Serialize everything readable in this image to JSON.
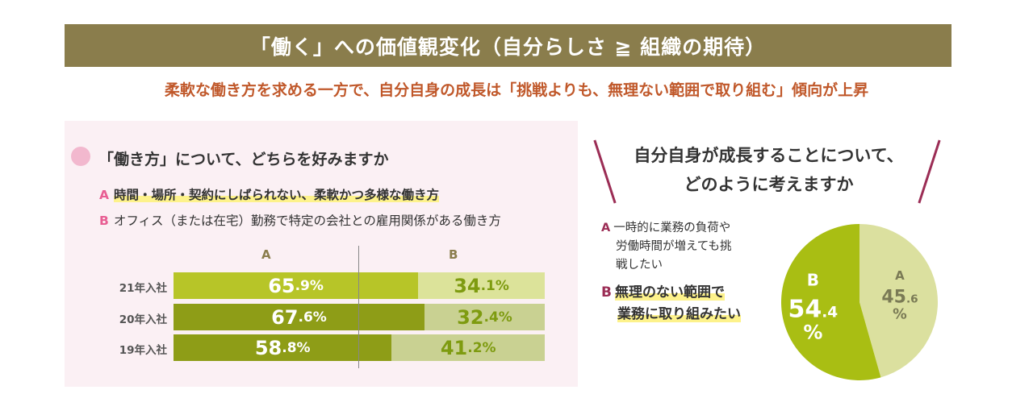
{
  "header": {
    "title": "「働く」への価値観変化（自分らしさ ≧ 組織の期待）",
    "subtitle": "柔軟な働き方を求める一方で、自分自身の成長は「挑戦よりも、無理ない範囲で取り組む」傾向が上昇"
  },
  "left": {
    "question": "「働き方」について、どちらを好みますか",
    "option_a_key": "A",
    "option_a": "時間・場所・契約にしばられない、柔軟かつ多様な働き方",
    "option_b_key": "B",
    "option_b": "オフィス（または在宅）勤務で特定の会社との雇用関係がある働き方",
    "col_a": "A",
    "col_b": "B"
  },
  "right": {
    "question_line1": "自分自身が成長することについて、",
    "question_line2": "どのように考えますか",
    "option_a_key": "A",
    "option_a_line1": "一時的に業務の負荷や",
    "option_a_line2": "労働時間が増えても挑",
    "option_a_line3": "戦したい",
    "option_b_key": "B",
    "option_b_line1": "無理のない範囲で",
    "option_b_line2": "業務に取り組みたい"
  },
  "chart_data": [
    {
      "type": "bar",
      "stacked": true,
      "orientation": "horizontal",
      "categories": [
        "21年入社",
        "20年入社",
        "19年入社"
      ],
      "series": [
        {
          "name": "A",
          "values": [
            65.9,
            67.6,
            58.8
          ]
        },
        {
          "name": "B",
          "values": [
            34.1,
            32.4,
            41.2
          ]
        }
      ],
      "unit": "%",
      "xlim": [
        0,
        100
      ],
      "colors": {
        "a": [
          "#b7c528",
          "#8e9d17",
          "#8e9d17"
        ],
        "b": [
          "#dce39a",
          "#c9d192",
          "#c9d192"
        ]
      }
    },
    {
      "type": "pie",
      "labels": [
        "A",
        "B"
      ],
      "values": [
        45.6,
        54.4
      ],
      "unit": "%",
      "colors": [
        "#dbe09f",
        "#a9be13"
      ]
    }
  ],
  "colors": {
    "banner": "#8a7d4c",
    "subtitle": "#c0582a",
    "accent_pink": "#e85e93",
    "accent_wine": "#9b2d55"
  }
}
